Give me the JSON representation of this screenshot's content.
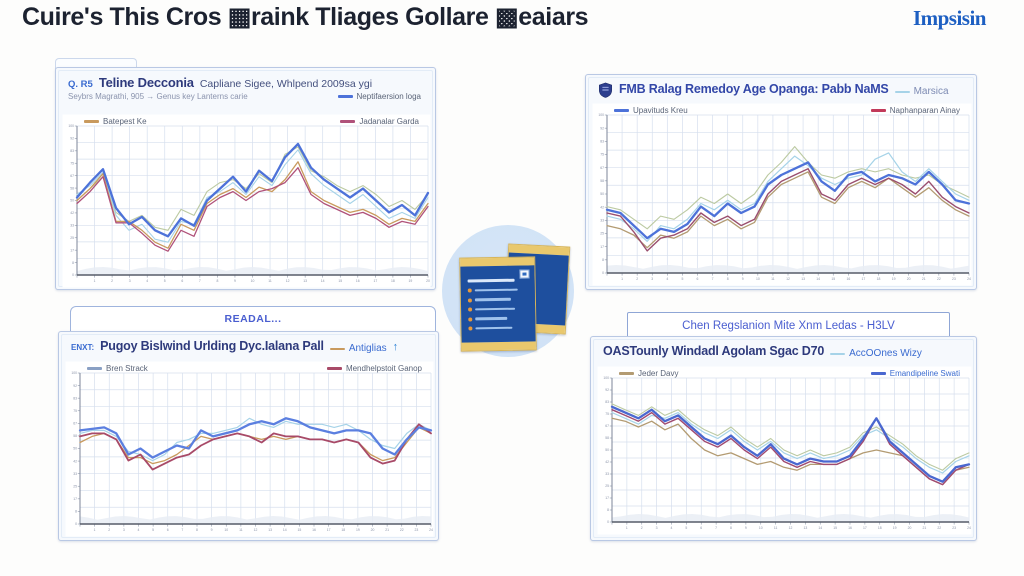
{
  "page": {
    "title": "Cuire's This Cros ▦raink Tliages Gollare ▩eaiars",
    "logo": "Impsisin"
  },
  "colors": {
    "title_text": "#1c2230",
    "logo_blue": "#1d5fc2",
    "panel_border": "#b9c8e4",
    "navy": "#2e3a7c",
    "blue_text": "#3a6bd0",
    "banner_text": "#4a5ed0",
    "muted": "#8a93ad",
    "dash_red": "#c23a5a",
    "dash_gray_blue": "#8aa0c4",
    "badge_circle": "#cfe1f5",
    "card_blue": "#1e4f9e",
    "card_gold": "#e9c86d",
    "bullet_orange": "#e89a3c"
  },
  "panels": [
    {
      "prefix": "Q. R5",
      "title": "Teline Decconia",
      "subtitle": "Capliane Sigee, Whlpend 2009sa ygi",
      "row2": "Seybrs Magrathi, 905 → Genus key Lanterns carie",
      "row2_legend": "Neptifaersion loga",
      "legend_left": "Batepest Ke",
      "legend_right": "Jadanalar Garda"
    },
    {
      "title": "FMB Ralag Remedoy Age Opanga: Pabb NaMS",
      "title_legend": "Marsica",
      "legend_left": "Upavituds Kreu",
      "legend_right": "Naphanparan Ainay"
    },
    {
      "banner": "READAL...",
      "prefix": "ENXT:",
      "title": "Pugoy Bislwind Urlding Dyc.Ialana Pall",
      "title_legend": "Antiglias",
      "arrow": "↑",
      "legend_left": "Bren Strack",
      "legend_right": "Mendhelpstoit Ganop"
    },
    {
      "banner": "Chen Regslanion Mite Xnm Ledas - H3LV",
      "title": "OASTounly Windadl Agolam Sgac D70",
      "title_legend": "AccOOnes Wizy",
      "legend_left": "Jeder Davy",
      "legend_right": "Emandipeline Swati"
    }
  ],
  "chart_data": [
    {
      "type": "line",
      "title": "Teline Decconia — Capliane Sigee",
      "xlabel": "",
      "ylabel": "",
      "ylim": [
        0,
        100
      ],
      "grid": true,
      "legend_position": "top",
      "x_gridlines": 20,
      "y_gridlines": 9,
      "series": [
        {
          "name": "aux-green",
          "color": "#bccaa2",
          "width": 1.1,
          "values": [
            50,
            58,
            66,
            42,
            36,
            40,
            32,
            30,
            44,
            40,
            56,
            62,
            64,
            58,
            68,
            62,
            81,
            86,
            70,
            66,
            60,
            56,
            60,
            54,
            46,
            50,
            44,
            54
          ]
        },
        {
          "name": "aux-cyan",
          "color": "#a6d3e8",
          "width": 1.1,
          "values": [
            54,
            60,
            69,
            40,
            30,
            34,
            24,
            22,
            36,
            34,
            52,
            56,
            62,
            54,
            66,
            60,
            74,
            84,
            68,
            60,
            54,
            48,
            54,
            46,
            38,
            42,
            38,
            52
          ]
        },
        {
          "name": "Batepest Ke",
          "color": "#c99a5d",
          "width": 1.3,
          "values": [
            50,
            58,
            68,
            36,
            36,
            30,
            22,
            18,
            34,
            30,
            48,
            54,
            58,
            52,
            59,
            56,
            64,
            76,
            56,
            50,
            46,
            42,
            44,
            40,
            34,
            38,
            36,
            48
          ]
        },
        {
          "name": "Jadanalar Garda",
          "color": "#b0527a",
          "width": 1.3,
          "values": [
            48,
            56,
            66,
            35,
            35,
            28,
            20,
            16,
            30,
            26,
            46,
            52,
            56,
            50,
            56,
            58,
            62,
            72,
            54,
            48,
            44,
            40,
            42,
            38,
            32,
            36,
            34,
            46
          ]
        },
        {
          "name": "Neptifaersion loga",
          "color": "#4d72d9",
          "width": 2.3,
          "values": [
            52,
            62,
            71,
            45,
            34,
            39,
            30,
            26,
            38,
            33,
            50,
            58,
            66,
            56,
            70,
            63,
            79,
            88,
            72,
            64,
            58,
            52,
            58,
            50,
            42,
            47,
            40,
            55
          ]
        }
      ]
    },
    {
      "type": "line",
      "title": "FMB Ralag Remedoy Age Opanga: Pabb NaMS",
      "xlabel": "",
      "ylabel": "",
      "ylim": [
        0,
        100
      ],
      "grid": true,
      "legend_position": "top",
      "x_gridlines": 24,
      "y_gridlines": 9,
      "series": [
        {
          "name": "aux-green",
          "color": "#bccaa2",
          "width": 1.1,
          "values": [
            42,
            40,
            34,
            28,
            36,
            34,
            40,
            48,
            44,
            50,
            44,
            50,
            62,
            70,
            80,
            70,
            62,
            60,
            64,
            66,
            64,
            66,
            62,
            60,
            62,
            56,
            52,
            48
          ]
        },
        {
          "name": "Marsica",
          "color": "#a6d3e8",
          "width": 1.2,
          "values": [
            36,
            34,
            28,
            20,
            30,
            28,
            34,
            44,
            40,
            46,
            40,
            44,
            58,
            66,
            74,
            68,
            60,
            56,
            60,
            62,
            72,
            76,
            64,
            58,
            66,
            58,
            50,
            46
          ]
        },
        {
          "name": "aux-tan",
          "color": "#b39b72",
          "width": 1.3,
          "values": [
            30,
            28,
            24,
            16,
            24,
            22,
            26,
            36,
            30,
            34,
            28,
            32,
            48,
            56,
            60,
            64,
            48,
            44,
            54,
            58,
            54,
            60,
            54,
            48,
            54,
            46,
            40,
            36
          ]
        },
        {
          "name": "Naphanparan Ainay",
          "color": "#9a4e6e",
          "width": 1.4,
          "values": [
            38,
            36,
            26,
            14,
            22,
            24,
            28,
            38,
            32,
            36,
            30,
            34,
            50,
            58,
            62,
            66,
            50,
            46,
            56,
            60,
            56,
            60,
            56,
            50,
            58,
            48,
            42,
            38
          ]
        },
        {
          "name": "Upavituds Kreu",
          "color": "#4d72d9",
          "width": 2.3,
          "values": [
            40,
            38,
            30,
            22,
            28,
            26,
            31,
            42,
            36,
            44,
            38,
            42,
            56,
            62,
            66,
            70,
            58,
            52,
            62,
            64,
            58,
            62,
            60,
            56,
            64,
            56,
            46,
            44
          ]
        }
      ]
    },
    {
      "type": "line",
      "title": "Pugoy Bislwind Urlding Dyc.Ialana Pall",
      "xlabel": "",
      "ylabel": "",
      "ylim": [
        0,
        100
      ],
      "grid": true,
      "legend_position": "top",
      "x_gridlines": 24,
      "y_gridlines": 9,
      "series": [
        {
          "name": "aux-cyan",
          "color": "#a6d3e8",
          "width": 1.2,
          "values": [
            60,
            62,
            62,
            58,
            48,
            46,
            42,
            46,
            54,
            56,
            60,
            60,
            62,
            64,
            70,
            66,
            64,
            68,
            66,
            66,
            66,
            64,
            66,
            62,
            56,
            52,
            50,
            60,
            66,
            62
          ]
        },
        {
          "name": "Antiglias",
          "color": "#c99a5d",
          "width": 1.3,
          "values": [
            54,
            58,
            60,
            56,
            44,
            44,
            40,
            42,
            46,
            52,
            58,
            56,
            58,
            60,
            58,
            56,
            58,
            56,
            58,
            56,
            56,
            54,
            56,
            54,
            46,
            42,
            44,
            54,
            64,
            60
          ]
        },
        {
          "name": "Mendhelpstoit Ganop",
          "color": "#a84a68",
          "width": 1.8,
          "values": [
            58,
            60,
            60,
            56,
            42,
            46,
            36,
            40,
            44,
            46,
            52,
            56,
            58,
            60,
            58,
            54,
            60,
            58,
            58,
            56,
            56,
            54,
            56,
            54,
            44,
            40,
            42,
            56,
            66,
            60
          ]
        },
        {
          "name": "Bren Strack",
          "color": "#5b7fe0",
          "width": 2.3,
          "values": [
            62,
            63,
            64,
            60,
            46,
            50,
            44,
            48,
            52,
            50,
            62,
            58,
            60,
            62,
            66,
            68,
            66,
            70,
            68,
            64,
            62,
            60,
            62,
            62,
            60,
            50,
            46,
            56,
            64,
            62
          ]
        }
      ]
    },
    {
      "type": "line",
      "title": "OASTounly Windadl Agolam Sgac D70",
      "xlabel": "",
      "ylabel": "",
      "ylim": [
        0,
        100
      ],
      "grid": true,
      "legend_position": "top",
      "x_gridlines": 24,
      "y_gridlines": 9,
      "series": [
        {
          "name": "aux-green",
          "color": "#bccaa2",
          "width": 1.1,
          "values": [
            82,
            78,
            74,
            80,
            74,
            78,
            70,
            64,
            60,
            66,
            58,
            52,
            58,
            50,
            46,
            50,
            46,
            48,
            52,
            62,
            66,
            60,
            54,
            46,
            40,
            36,
            44,
            48
          ]
        },
        {
          "name": "AccOOnes Wizy",
          "color": "#a6d3e8",
          "width": 1.2,
          "values": [
            76,
            72,
            68,
            74,
            72,
            76,
            68,
            62,
            58,
            64,
            56,
            50,
            56,
            48,
            44,
            48,
            44,
            46,
            50,
            60,
            64,
            58,
            52,
            44,
            38,
            34,
            42,
            46
          ]
        },
        {
          "name": "Jeder Davy",
          "color": "#b39b72",
          "width": 1.3,
          "values": [
            72,
            70,
            66,
            70,
            64,
            68,
            58,
            50,
            46,
            48,
            44,
            40,
            42,
            38,
            36,
            40,
            40,
            40,
            44,
            48,
            50,
            48,
            46,
            38,
            30,
            26,
            36,
            38
          ]
        },
        {
          "name": "aux-magenta",
          "color": "#a04a70",
          "width": 1.4,
          "values": [
            78,
            74,
            70,
            76,
            68,
            72,
            64,
            56,
            52,
            58,
            50,
            44,
            52,
            42,
            38,
            42,
            40,
            40,
            44,
            56,
            72,
            54,
            46,
            38,
            30,
            26,
            36,
            40
          ]
        },
        {
          "name": "Emandipeline Swati",
          "color": "#4a68d0",
          "width": 2.3,
          "values": [
            80,
            76,
            72,
            78,
            70,
            74,
            66,
            58,
            54,
            60,
            52,
            46,
            54,
            44,
            40,
            44,
            42,
            42,
            46,
            58,
            72,
            56,
            48,
            40,
            32,
            28,
            38,
            40
          ]
        }
      ]
    }
  ]
}
